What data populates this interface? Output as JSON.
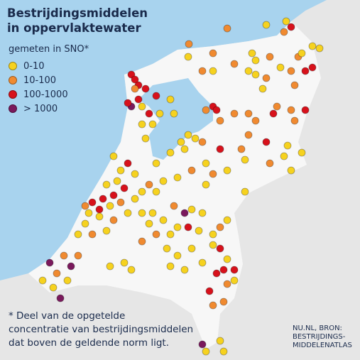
{
  "title": [
    "Bestrijdingsmiddelen",
    "in oppervlaktewater"
  ],
  "legend": {
    "title": "gemeten in SNO*",
    "items": [
      {
        "label": "0-10",
        "color": "#f6d21f"
      },
      {
        "label": "10-100",
        "color": "#f08a30"
      },
      {
        "label": "100-1000",
        "color": "#d7111b"
      },
      {
        "label": "> 1000",
        "color": "#7a195c"
      }
    ]
  },
  "footnote": [
    "* Deel van de opgetelde",
    "concentratie van bestrijdingsmiddelen",
    "dat boven de geldende norm ligt."
  ],
  "source": [
    "NU.NL, BRON:",
    "BESTRIJDINGS-",
    "MIDDELENATLAS"
  ]
}
